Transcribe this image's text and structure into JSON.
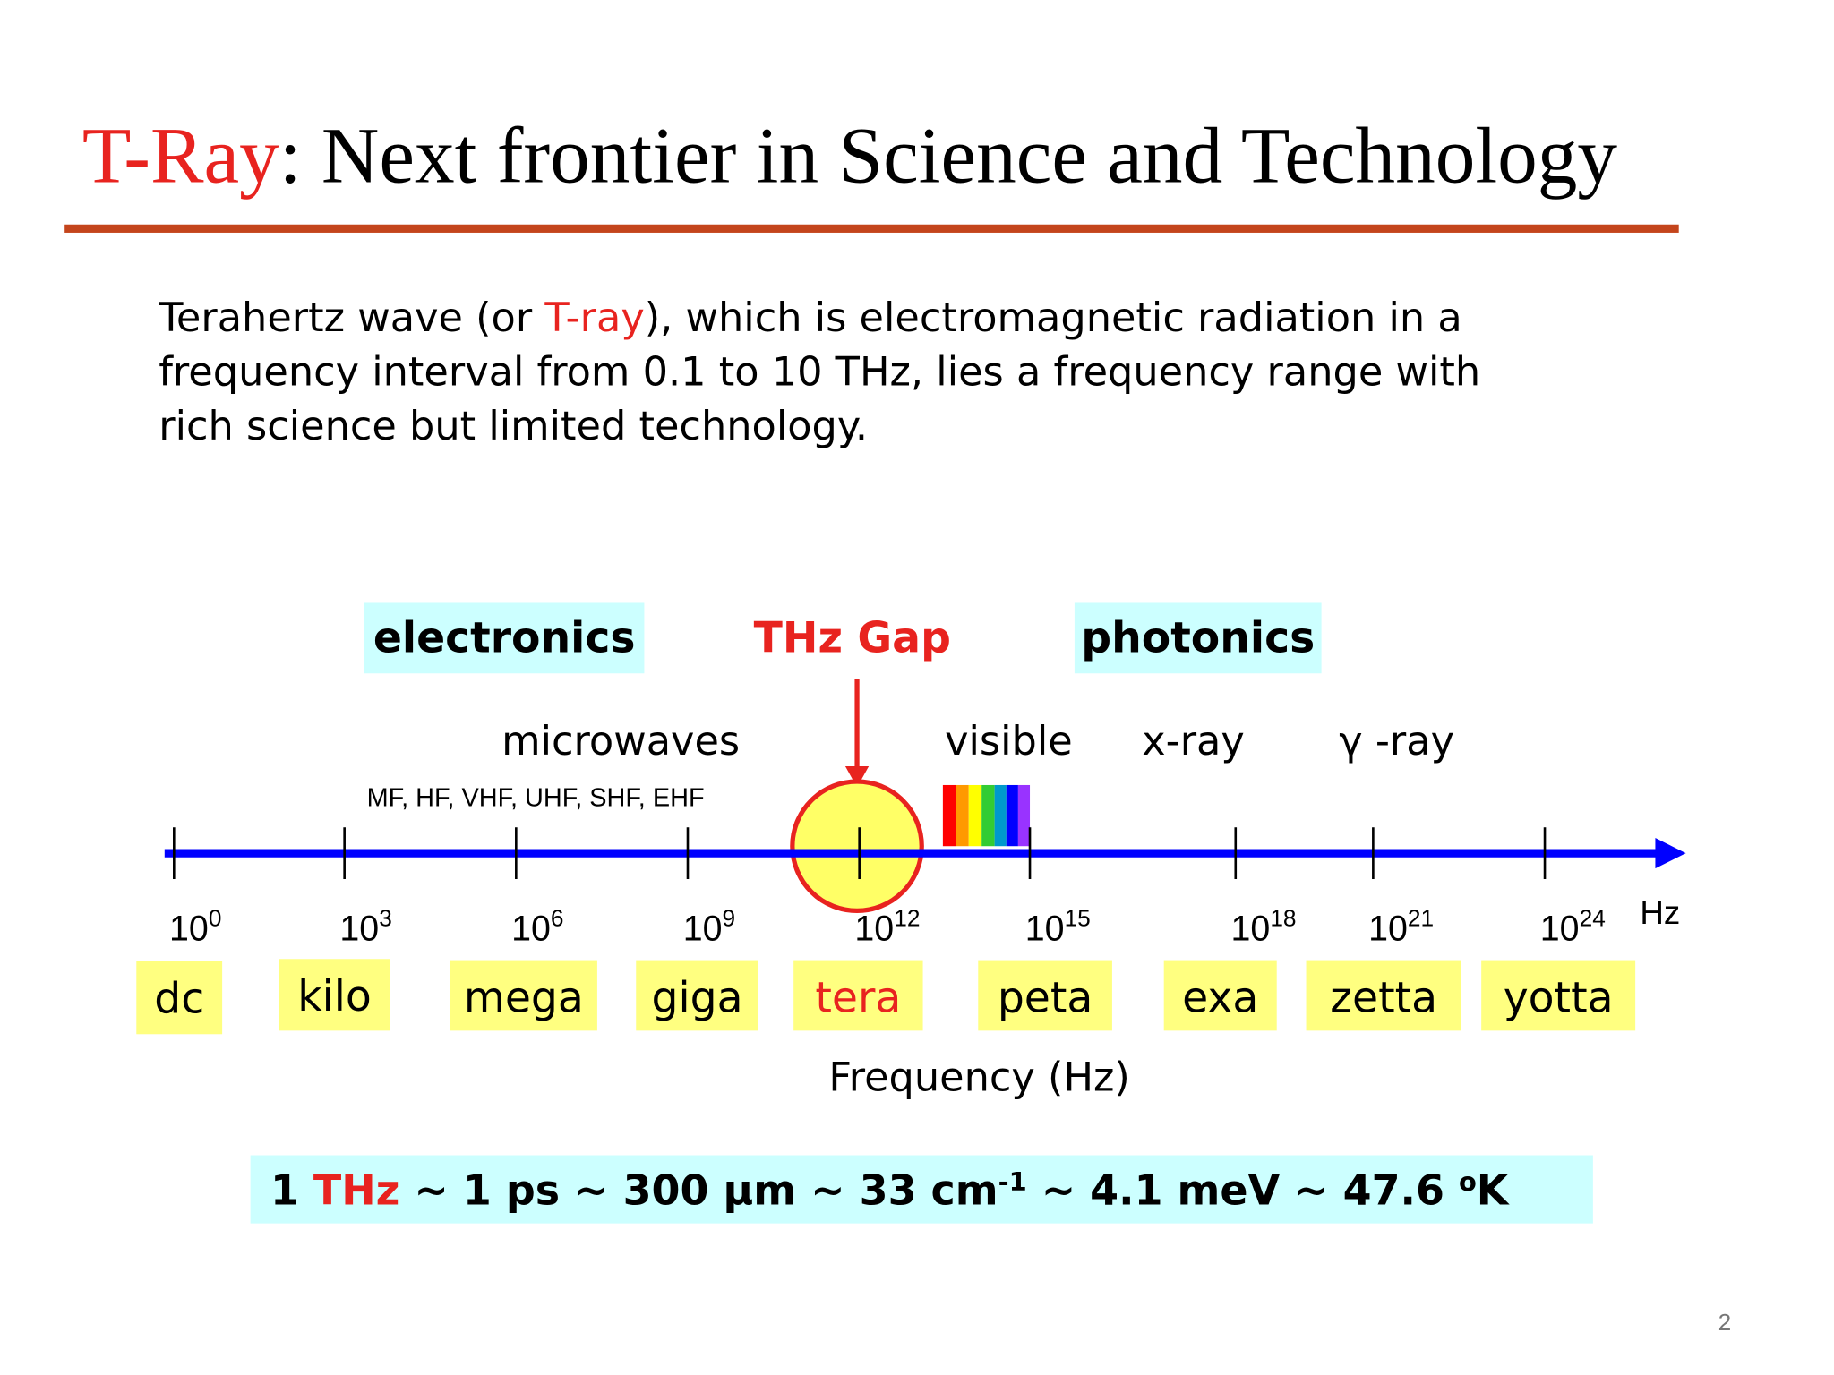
{
  "header": {
    "title_highlight": "T-Ray",
    "title_rest": ": Next frontier in Science and Technology"
  },
  "intro": {
    "lines": [
      [
        "Terahertz wave (or ",
        "T-ray",
        "), which is electromagnetic radiation in a"
      ],
      [
        "frequency interval from 0.1 to 10 THz, lies a frequency range with"
      ],
      [
        "rich science but limited technology."
      ]
    ]
  },
  "diagram": {
    "domains": {
      "electronics": "electronics",
      "gap": "THz Gap",
      "photonics": "photonics"
    },
    "bands": {
      "microwaves": "microwaves",
      "microwave_sub": "MF, HF, VHF, UHF, SHF, EHF",
      "visible": "visible",
      "xray": "x-ray",
      "gamma": "γ -ray"
    },
    "ticks": [
      {
        "base": "10",
        "exp": 0
      },
      {
        "base": "10",
        "exp": 3
      },
      {
        "base": "10",
        "exp": 6
      },
      {
        "base": "10",
        "exp": 9
      },
      {
        "base": "10",
        "exp": 12
      },
      {
        "base": "10",
        "exp": 15
      },
      {
        "base": "10",
        "exp": 18
      },
      {
        "base": "10",
        "exp": 21
      },
      {
        "base": "10",
        "exp": 24
      }
    ],
    "unit": "Hz",
    "prefixes": [
      "dc",
      "kilo",
      "mega",
      "giga",
      "tera",
      "peta",
      "exa",
      "zetta",
      "yotta"
    ],
    "axis_label": "Frequency (Hz)"
  },
  "conversion": {
    "parts": [
      "1 ",
      "THz",
      " ~ 1 ps ~ 300 μm ~ 33 cm",
      "-1",
      " ~ 4.1 meV ~ 47.6 ",
      "o",
      "K"
    ]
  },
  "footer": {
    "page_number": "2"
  }
}
